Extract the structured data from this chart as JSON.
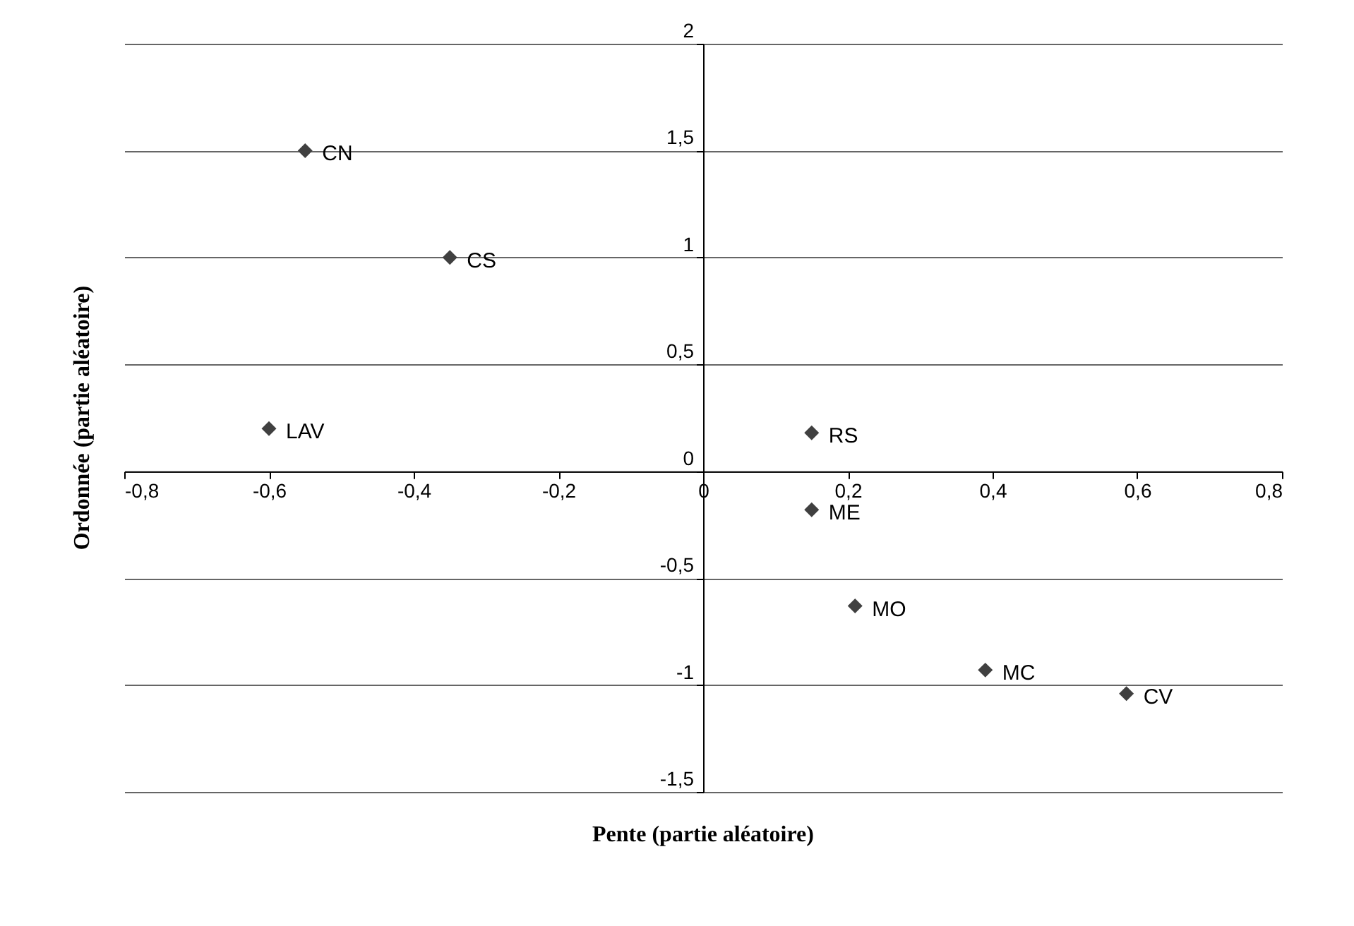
{
  "chart_data": {
    "type": "scatter",
    "xlabel": "Pente (partie aléatoire)",
    "ylabel": "Ordonnée (partie aléatoire)",
    "x": [
      -0.55,
      -0.35,
      -0.6,
      0.15,
      0.15,
      0.21,
      0.39,
      0.585
    ],
    "series": [
      {
        "color": "#404040",
        "values": [
          1.5,
          1.0,
          0.2,
          0.18,
          -0.18,
          -0.63,
          -0.93,
          -1.04
        ]
      }
    ],
    "annotations": [
      {
        "text": "CN",
        "x": -0.55,
        "y": 1.5
      },
      {
        "text": "CS",
        "x": -0.35,
        "y": 1.0
      },
      {
        "text": "LAV",
        "x": -0.6,
        "y": 0.2
      },
      {
        "text": "RS",
        "x": 0.15,
        "y": 0.18
      },
      {
        "text": "ME",
        "x": 0.15,
        "y": -0.18
      },
      {
        "text": "MO",
        "x": 0.21,
        "y": -0.63
      },
      {
        "text": "MC",
        "x": 0.39,
        "y": -0.93
      },
      {
        "text": "CV",
        "x": 0.585,
        "y": -1.04
      }
    ],
    "xlim": [
      -0.8,
      0.8
    ],
    "xticks": [
      {
        "value": -0.8,
        "label": "-0,8"
      },
      {
        "value": -0.6,
        "label": "-0,6"
      },
      {
        "value": -0.4,
        "label": "-0,4"
      },
      {
        "value": -0.2,
        "label": "-0,2"
      },
      0,
      {
        "value": 0.2,
        "label": "0,2"
      },
      {
        "value": 0.4,
        "label": "0,4"
      },
      {
        "value": 0.6,
        "label": "0,6"
      },
      {
        "value": 0.8,
        "label": "0,8"
      }
    ],
    "ylim": [
      -1.5,
      2
    ],
    "yticks": [
      {
        "value": -1.5,
        "label": "-1,5"
      },
      -1,
      {
        "value": -0.5,
        "label": "-0,5"
      },
      0,
      {
        "value": 0.5,
        "label": "0,5"
      },
      1,
      {
        "value": 1.5,
        "label": "1,5"
      },
      2
    ],
    "grid": "y",
    "marker": "diamond"
  }
}
